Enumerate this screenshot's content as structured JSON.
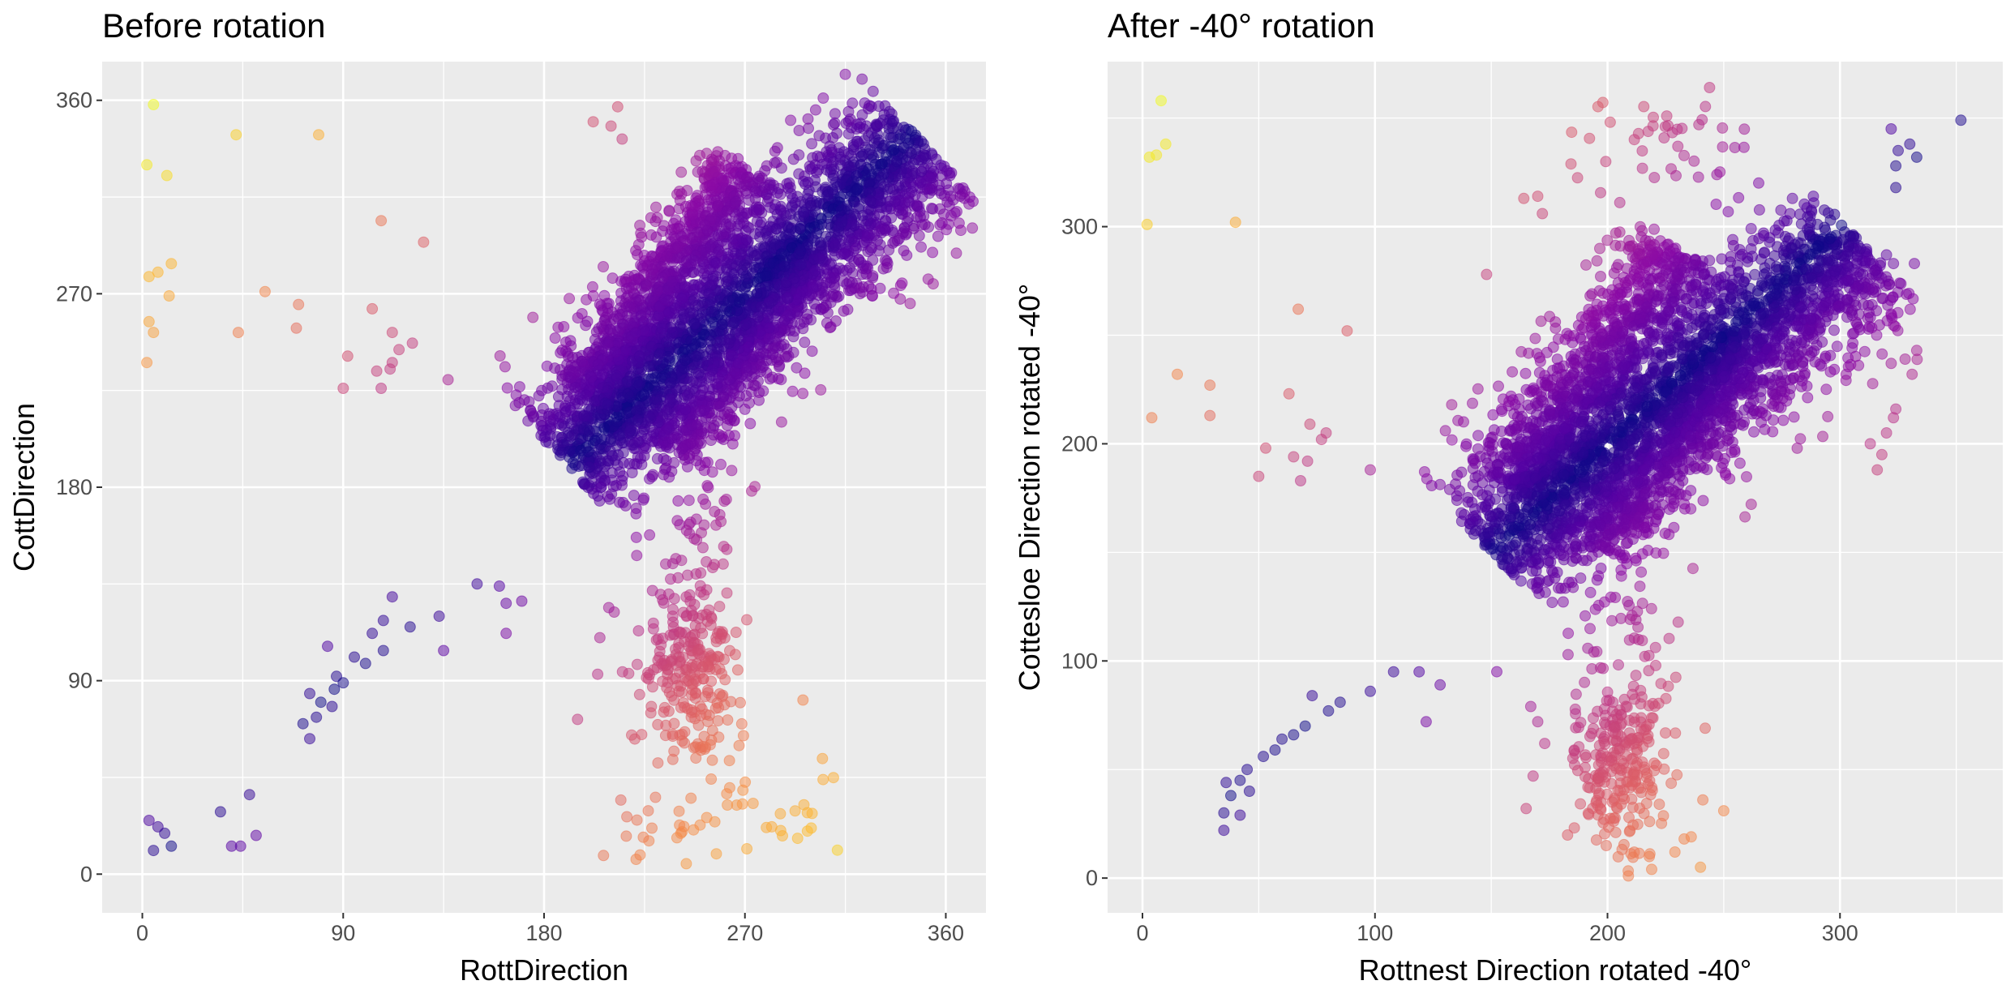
{
  "chart_data": [
    {
      "type": "scatter",
      "title": "Before rotation",
      "xlabel": "RottDirection",
      "ylabel": "CottDirection",
      "xlim": [
        -18,
        378
      ],
      "ylim": [
        -18,
        378
      ],
      "xticks": [
        0,
        90,
        180,
        270,
        360
      ],
      "yticks": [
        0,
        90,
        180,
        270,
        360
      ],
      "xtick_labels": [
        "0",
        "90",
        "180",
        "270",
        "360"
      ],
      "ytick_labels": [
        "0",
        "90",
        "180",
        "270",
        "360"
      ],
      "grid": true,
      "background": "#ebebeb",
      "color_scale": "plasma (by distance from diagonal)",
      "dense_regions": [
        {
          "shape": "band",
          "from": [
            188,
            192
          ],
          "to": [
            350,
            340
          ],
          "width": 32,
          "n": 2400
        },
        {
          "shape": "band",
          "from": [
            200,
            222
          ],
          "to": [
            270,
            330
          ],
          "width": 18,
          "n": 900
        },
        {
          "shape": "band",
          "from": [
            236,
            196
          ],
          "to": [
            300,
            290
          ],
          "width": 16,
          "n": 500
        },
        {
          "shape": "blob",
          "center": [
            245,
            95
          ],
          "spread": [
            10,
            22
          ],
          "n": 260
        },
        {
          "shape": "blob",
          "center": [
            245,
            160
          ],
          "spread": [
            14,
            14
          ],
          "n": 40
        },
        {
          "shape": "blob",
          "center": [
            262,
            25
          ],
          "spread": [
            25,
            12
          ],
          "n": 45
        }
      ],
      "points": [
        [
          5,
          358
        ],
        [
          2,
          330
        ],
        [
          11,
          325
        ],
        [
          42,
          344
        ],
        [
          79,
          344
        ],
        [
          3,
          278
        ],
        [
          7,
          280
        ],
        [
          13,
          284
        ],
        [
          12,
          269
        ],
        [
          55,
          271
        ],
        [
          70,
          265
        ],
        [
          3,
          257
        ],
        [
          5,
          252
        ],
        [
          43,
          252
        ],
        [
          69,
          254
        ],
        [
          2,
          238
        ],
        [
          107,
          304
        ],
        [
          126,
          294
        ],
        [
          103,
          263
        ],
        [
          112,
          252
        ],
        [
          115,
          244
        ],
        [
          121,
          247
        ],
        [
          92,
          241
        ],
        [
          112,
          238
        ],
        [
          105,
          234
        ],
        [
          111,
          235
        ],
        [
          90,
          226
        ],
        [
          107,
          226
        ],
        [
          137,
          230
        ],
        [
          175,
          259
        ],
        [
          112,
          129
        ],
        [
          108,
          118
        ],
        [
          103,
          112
        ],
        [
          95,
          101
        ],
        [
          100,
          98
        ],
        [
          108,
          104
        ],
        [
          120,
          115
        ],
        [
          133,
          120
        ],
        [
          150,
          135
        ],
        [
          160,
          134
        ],
        [
          163,
          126
        ],
        [
          170,
          127
        ],
        [
          163,
          112
        ],
        [
          135,
          104
        ],
        [
          83,
          106
        ],
        [
          87,
          92
        ],
        [
          90,
          89
        ],
        [
          86,
          86
        ],
        [
          80,
          80
        ],
        [
          85,
          78
        ],
        [
          75,
          84
        ],
        [
          78,
          73
        ],
        [
          72,
          70
        ],
        [
          75,
          63
        ],
        [
          3,
          25
        ],
        [
          7,
          22
        ],
        [
          10,
          19
        ],
        [
          13,
          13
        ],
        [
          5,
          11
        ],
        [
          35,
          29
        ],
        [
          48,
          37
        ],
        [
          44,
          13
        ],
        [
          40,
          13
        ],
        [
          51,
          18
        ],
        [
          195,
          72
        ],
        [
          204,
          93
        ],
        [
          209,
          124
        ],
        [
          205,
          110
        ],
        [
          213,
          357
        ],
        [
          210,
          348
        ],
        [
          215,
          342
        ],
        [
          202,
          350
        ],
        [
          298,
          20
        ],
        [
          282,
          22
        ],
        [
          296,
          81
        ],
        [
          305,
          44
        ]
      ]
    },
    {
      "type": "scatter",
      "title": "After -40° rotation",
      "xlabel": "Rottnest Direction rotated -40°",
      "ylabel": "Cottesloe Direction rotated -40°",
      "xlim": [
        -15,
        370
      ],
      "ylim": [
        -16,
        376
      ],
      "xticks": [
        0,
        100,
        200,
        300
      ],
      "yticks": [
        0,
        100,
        200,
        300
      ],
      "xtick_labels": [
        "0",
        "100",
        "200",
        "300"
      ],
      "ytick_labels": [
        "0",
        "100",
        "200",
        "300"
      ],
      "grid": true,
      "background": "#ebebeb",
      "color_scale": "plasma (by distance from diagonal)",
      "dense_regions": [
        {
          "shape": "band",
          "from": [
            150,
            150
          ],
          "to": [
            310,
            292
          ],
          "width": 34,
          "n": 2400
        },
        {
          "shape": "band",
          "from": [
            160,
            180
          ],
          "to": [
            230,
            290
          ],
          "width": 20,
          "n": 900
        },
        {
          "shape": "band",
          "from": [
            196,
            152
          ],
          "to": [
            260,
            250
          ],
          "width": 16,
          "n": 500
        },
        {
          "shape": "blob",
          "center": [
            205,
            55
          ],
          "spread": [
            10,
            22
          ],
          "n": 260
        },
        {
          "shape": "blob",
          "center": [
            205,
            120
          ],
          "spread": [
            14,
            14
          ],
          "n": 40
        },
        {
          "shape": "blob",
          "center": [
            222,
            335
          ],
          "spread": [
            18,
            12
          ],
          "n": 45
        }
      ],
      "points": [
        [
          8,
          358
        ],
        [
          3,
          332
        ],
        [
          6,
          333
        ],
        [
          10,
          338
        ],
        [
          2,
          301
        ],
        [
          40,
          302
        ],
        [
          15,
          232
        ],
        [
          29,
          227
        ],
        [
          4,
          212
        ],
        [
          29,
          213
        ],
        [
          67,
          262
        ],
        [
          88,
          252
        ],
        [
          63,
          223
        ],
        [
          72,
          209
        ],
        [
          79,
          205
        ],
        [
          77,
          202
        ],
        [
          65,
          194
        ],
        [
          71,
          192
        ],
        [
          68,
          183
        ],
        [
          53,
          198
        ],
        [
          50,
          185
        ],
        [
          98,
          188
        ],
        [
          133,
          218
        ],
        [
          108,
          95
        ],
        [
          119,
          95
        ],
        [
          128,
          89
        ],
        [
          122,
          72
        ],
        [
          98,
          86
        ],
        [
          85,
          81
        ],
        [
          80,
          77
        ],
        [
          73,
          84
        ],
        [
          70,
          70
        ],
        [
          65,
          66
        ],
        [
          60,
          64
        ],
        [
          57,
          59
        ],
        [
          52,
          56
        ],
        [
          45,
          50
        ],
        [
          42,
          45
        ],
        [
          36,
          44
        ],
        [
          35,
          30
        ],
        [
          38,
          38
        ],
        [
          42,
          29
        ],
        [
          35,
          22
        ],
        [
          46,
          40
        ],
        [
          165,
          32
        ],
        [
          168,
          47
        ],
        [
          167,
          79
        ],
        [
          173,
          62
        ],
        [
          170,
          72
        ],
        [
          352,
          349
        ],
        [
          322,
          345
        ],
        [
          330,
          338
        ],
        [
          325,
          335
        ],
        [
          333,
          332
        ],
        [
          324,
          328
        ],
        [
          324,
          318
        ],
        [
          320,
          287
        ],
        [
          323,
          283
        ],
        [
          332,
          283
        ],
        [
          322,
          237
        ],
        [
          328,
          239
        ],
        [
          333,
          243
        ],
        [
          331,
          232
        ],
        [
          324,
          216
        ],
        [
          320,
          205
        ],
        [
          323,
          212
        ],
        [
          318,
          195
        ],
        [
          316,
          188
        ],
        [
          313,
          200
        ],
        [
          250,
          31
        ],
        [
          241,
          36
        ],
        [
          233,
          18
        ],
        [
          229,
          12
        ],
        [
          240,
          5
        ],
        [
          219,
          4
        ],
        [
          209,
          1
        ],
        [
          148,
          278
        ],
        [
          164,
          313
        ],
        [
          170,
          314
        ],
        [
          172,
          306
        ],
        [
          242,
          69
        ],
        [
          236,
          19
        ]
      ]
    }
  ]
}
